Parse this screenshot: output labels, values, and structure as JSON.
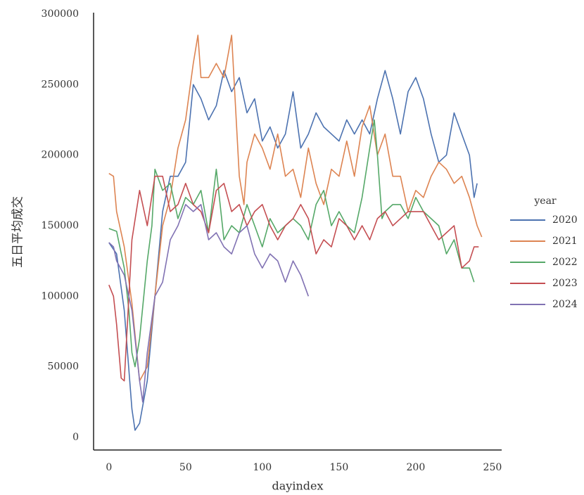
{
  "chart_data": {
    "type": "line",
    "xlabel": "dayindex",
    "ylabel": "五日平均成交",
    "xlim": [
      -10,
      256
    ],
    "ylim": [
      -9000,
      300000
    ],
    "xticks": [
      0,
      50,
      100,
      150,
      200,
      250
    ],
    "yticks": [
      0,
      50000,
      100000,
      150000,
      200000,
      250000,
      300000
    ],
    "legend_title": "year",
    "legend_position": "right",
    "grid": false,
    "series": [
      {
        "name": "2020",
        "color": "#4c72b0",
        "x": [
          0,
          5,
          10,
          15,
          17,
          20,
          25,
          30,
          35,
          40,
          45,
          50,
          55,
          60,
          65,
          70,
          75,
          80,
          85,
          90,
          95,
          100,
          105,
          110,
          115,
          120,
          125,
          130,
          135,
          140,
          145,
          150,
          155,
          160,
          165,
          170,
          175,
          180,
          185,
          190,
          195,
          200,
          205,
          210,
          215,
          220,
          225,
          230,
          235,
          238,
          240
        ],
        "values": [
          138000,
          130000,
          90000,
          20000,
          5000,
          10000,
          40000,
          100000,
          160000,
          185000,
          185000,
          195000,
          250000,
          240000,
          225000,
          235000,
          260000,
          245000,
          255000,
          230000,
          240000,
          210000,
          220000,
          205000,
          215000,
          245000,
          205000,
          215000,
          230000,
          220000,
          215000,
          210000,
          225000,
          215000,
          225000,
          215000,
          240000,
          260000,
          240000,
          215000,
          245000,
          255000,
          240000,
          215000,
          195000,
          200000,
          230000,
          215000,
          200000,
          170000,
          180000
        ]
      },
      {
        "name": "2021",
        "color": "#dd8452",
        "x": [
          0,
          3,
          5,
          10,
          15,
          20,
          25,
          30,
          35,
          40,
          45,
          50,
          55,
          58,
          60,
          65,
          70,
          75,
          80,
          85,
          88,
          90,
          95,
          100,
          105,
          110,
          115,
          120,
          125,
          130,
          135,
          140,
          145,
          150,
          155,
          160,
          165,
          170,
          175,
          180,
          185,
          190,
          195,
          200,
          205,
          210,
          215,
          220,
          225,
          230,
          235,
          240,
          243
        ],
        "values": [
          187000,
          185000,
          160000,
          135000,
          95000,
          40000,
          50000,
          100000,
          150000,
          170000,
          205000,
          225000,
          265000,
          285000,
          255000,
          255000,
          265000,
          255000,
          285000,
          185000,
          165000,
          195000,
          215000,
          205000,
          190000,
          215000,
          185000,
          190000,
          170000,
          205000,
          180000,
          165000,
          190000,
          185000,
          210000,
          185000,
          220000,
          235000,
          200000,
          215000,
          185000,
          185000,
          160000,
          175000,
          170000,
          185000,
          195000,
          190000,
          180000,
          185000,
          170000,
          150000,
          142000
        ]
      },
      {
        "name": "2022",
        "color": "#55a868",
        "x": [
          0,
          5,
          10,
          13,
          15,
          17,
          20,
          25,
          28,
          30,
          35,
          40,
          45,
          50,
          55,
          60,
          65,
          70,
          75,
          80,
          85,
          90,
          95,
          100,
          105,
          110,
          115,
          120,
          125,
          130,
          135,
          140,
          145,
          150,
          155,
          160,
          165,
          170,
          173,
          175,
          178,
          180,
          185,
          190,
          195,
          200,
          205,
          210,
          215,
          220,
          225,
          230,
          235,
          238
        ],
        "values": [
          148000,
          146000,
          120000,
          90000,
          60000,
          50000,
          70000,
          125000,
          150000,
          190000,
          175000,
          180000,
          155000,
          170000,
          165000,
          175000,
          145000,
          190000,
          140000,
          150000,
          145000,
          165000,
          150000,
          135000,
          155000,
          145000,
          150000,
          155000,
          150000,
          140000,
          165000,
          175000,
          150000,
          160000,
          150000,
          145000,
          170000,
          205000,
          225000,
          200000,
          155000,
          160000,
          165000,
          165000,
          155000,
          170000,
          160000,
          155000,
          150000,
          130000,
          140000,
          120000,
          120000,
          110000
        ]
      },
      {
        "name": "2023",
        "color": "#c44e52",
        "x": [
          0,
          3,
          5,
          8,
          10,
          13,
          15,
          20,
          25,
          30,
          35,
          40,
          45,
          50,
          55,
          60,
          65,
          70,
          75,
          80,
          85,
          90,
          95,
          100,
          105,
          110,
          115,
          120,
          125,
          130,
          135,
          140,
          145,
          150,
          155,
          160,
          165,
          170,
          175,
          180,
          185,
          190,
          195,
          200,
          205,
          210,
          215,
          220,
          225,
          230,
          235,
          238,
          241
        ],
        "values": [
          108000,
          100000,
          80000,
          42000,
          40000,
          100000,
          140000,
          175000,
          150000,
          185000,
          185000,
          160000,
          165000,
          180000,
          165000,
          160000,
          145000,
          175000,
          180000,
          160000,
          165000,
          150000,
          160000,
          165000,
          150000,
          140000,
          150000,
          155000,
          165000,
          155000,
          130000,
          140000,
          135000,
          155000,
          150000,
          140000,
          150000,
          140000,
          155000,
          160000,
          150000,
          155000,
          160000,
          160000,
          160000,
          150000,
          140000,
          145000,
          150000,
          120000,
          125000,
          135000,
          135000
        ]
      },
      {
        "name": "2024",
        "color": "#8172b3",
        "x": [
          0,
          3,
          5,
          10,
          15,
          18,
          20,
          22,
          25,
          30,
          35,
          40,
          45,
          50,
          55,
          60,
          65,
          70,
          75,
          80,
          85,
          90,
          95,
          100,
          105,
          110,
          115,
          120,
          125,
          130
        ],
        "values": [
          138000,
          135000,
          125000,
          115000,
          90000,
          60000,
          40000,
          25000,
          60000,
          100000,
          110000,
          140000,
          150000,
          165000,
          160000,
          165000,
          140000,
          145000,
          135000,
          130000,
          145000,
          150000,
          130000,
          120000,
          130000,
          125000,
          110000,
          125000,
          115000,
          100000
        ]
      }
    ]
  }
}
